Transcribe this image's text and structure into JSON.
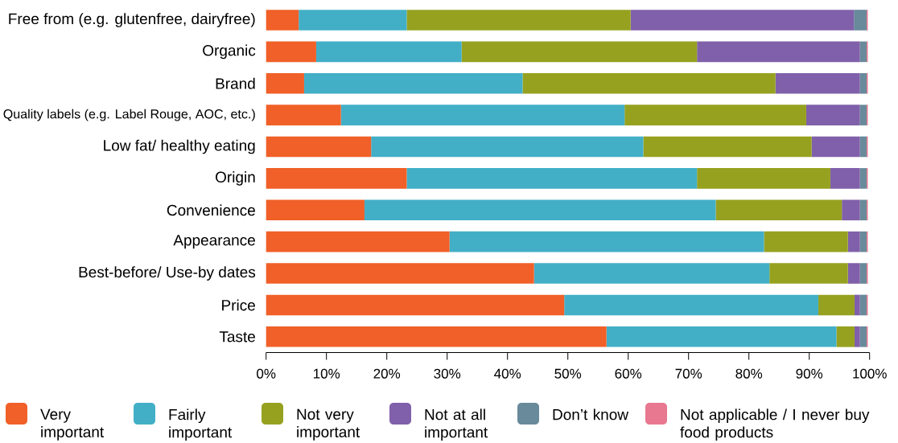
{
  "chart_data": {
    "type": "bar",
    "orientation": "horizontal",
    "stacked": true,
    "categories": [
      "Free from (e.g. glutenfree, dairyfree)",
      "Organic",
      "Brand",
      "Quality labels (e.g. Label Rouge, AOC, etc.)",
      "Low fat/ healthy eating",
      "Origin",
      "Convenience",
      "Appearance",
      "Best-before/ Use-by dates",
      "Price",
      "Taste"
    ],
    "series": [
      {
        "name": "Very important",
        "color": "#f06028",
        "values": [
          5.4,
          8.3,
          6.3,
          12.4,
          17.4,
          23.3,
          16.3,
          30.4,
          44.4,
          49.4,
          56.4
        ]
      },
      {
        "name": "Fairly important",
        "color": "#42afc7",
        "values": [
          17.9,
          24.1,
          36.2,
          47.0,
          45.1,
          48.1,
          58.2,
          52.1,
          39.0,
          42.1,
          38.1
        ]
      },
      {
        "name": "Not very important",
        "color": "#96a120",
        "values": [
          37.1,
          39.0,
          41.9,
          30.1,
          27.9,
          22.1,
          20.9,
          13.9,
          13.0,
          6.0,
          3.0
        ]
      },
      {
        "name": "Not at all important",
        "color": "#8060aa",
        "values": [
          37.0,
          27.0,
          14.0,
          8.9,
          8.0,
          4.9,
          3.0,
          2.0,
          2.0,
          0.9,
          0.9
        ]
      },
      {
        "name": "Don’t know",
        "color": "#688a9a",
        "values": [
          2.1,
          1.1,
          1.1,
          1.1,
          1.1,
          1.1,
          1.1,
          1.1,
          1.1,
          1.1,
          1.1
        ]
      },
      {
        "name": "Not applicable / I never buy food products",
        "color": "#e87890",
        "values": [
          0.2,
          0.2,
          0.2,
          0.2,
          0.2,
          0.2,
          0.2,
          0.2,
          0.2,
          0.2,
          0.2
        ]
      }
    ],
    "xlim": [
      0,
      100
    ],
    "xticks": [
      {
        "value": 0,
        "label": "0%"
      },
      {
        "value": 10,
        "label": "10%"
      },
      {
        "value": 20,
        "label": "20%"
      },
      {
        "value": 30,
        "label": "30%"
      },
      {
        "value": 40,
        "label": "40%"
      },
      {
        "value": 50,
        "label": "50%"
      },
      {
        "value": 60,
        "label": "60%"
      },
      {
        "value": 70,
        "label": "70%"
      },
      {
        "value": 80,
        "label": "80%"
      },
      {
        "value": 90,
        "label": "90%"
      },
      {
        "value": 100,
        "label": "100%"
      }
    ],
    "legend": "bottom"
  }
}
